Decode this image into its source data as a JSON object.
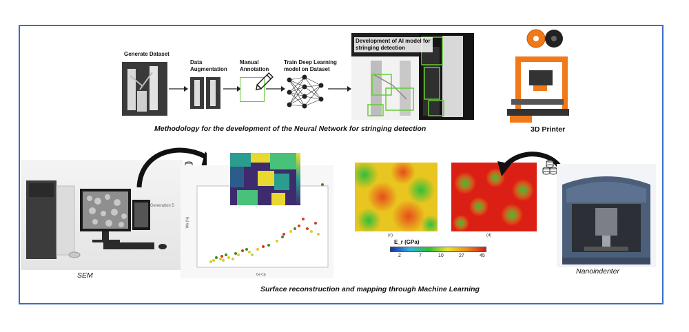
{
  "top": {
    "generate_dataset": "Generate Dataset",
    "data_augmentation": "Data Augmentation",
    "manual_annotation": "Manual Annotation",
    "train_model": "Train Deep Learning model on Dataset",
    "ai_model": "Development of AI model for stringing detection",
    "caption": "Methodology for the development of the Neural Network for stringing detection",
    "printer_label": "3D Printer"
  },
  "bottom": {
    "sem_label": "SEM",
    "generation_label": "Generation 5",
    "nanoindenter_label": "Nanoindenter",
    "caption": "Surface reconstruction and mapping through Machine Learning",
    "colorbar_title": "E_r (GPa)",
    "colorbar_ticks": [
      "2",
      "7",
      "10",
      "27",
      "45"
    ],
    "panel_c": "(c)",
    "panel_d": "(d)",
    "scatter_xlabel": "Gr-Cp",
    "scatter_ylabel": "Wb (%)"
  },
  "colors": {
    "frame": "#3a6cc9",
    "annotation_green": "#66cc33",
    "printer_orange": "#f07a1a"
  }
}
